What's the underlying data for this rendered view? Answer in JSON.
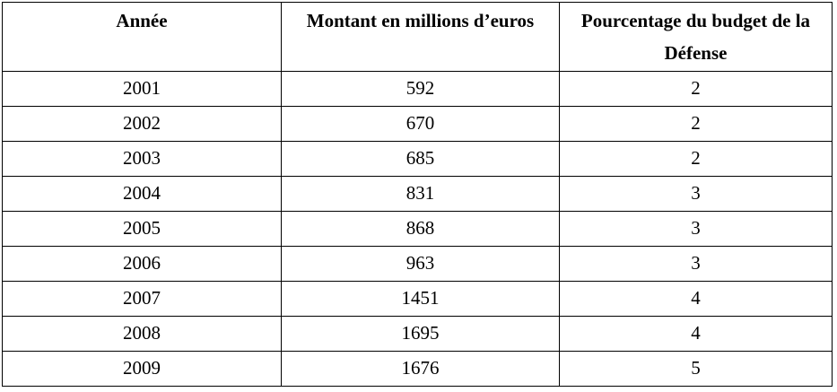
{
  "table": {
    "columns": [
      "Année",
      "Montant en millions d’euros",
      "Pourcentage du budget de la Défense"
    ],
    "header3_lines": [
      "Pourcentage du budget de la",
      "Défense"
    ],
    "rows": [
      [
        "2001",
        "592",
        "2"
      ],
      [
        "2002",
        "670",
        "2"
      ],
      [
        "2003",
        "685",
        "2"
      ],
      [
        "2004",
        "831",
        "3"
      ],
      [
        "2005",
        "868",
        "3"
      ],
      [
        "2006",
        "963",
        "3"
      ],
      [
        "2007",
        "1451",
        "4"
      ],
      [
        "2008",
        "1695",
        "4"
      ],
      [
        "2009",
        "1676",
        "5"
      ]
    ]
  },
  "colors": {
    "text": "#000000",
    "border": "#000000",
    "background": "#ffffff"
  }
}
